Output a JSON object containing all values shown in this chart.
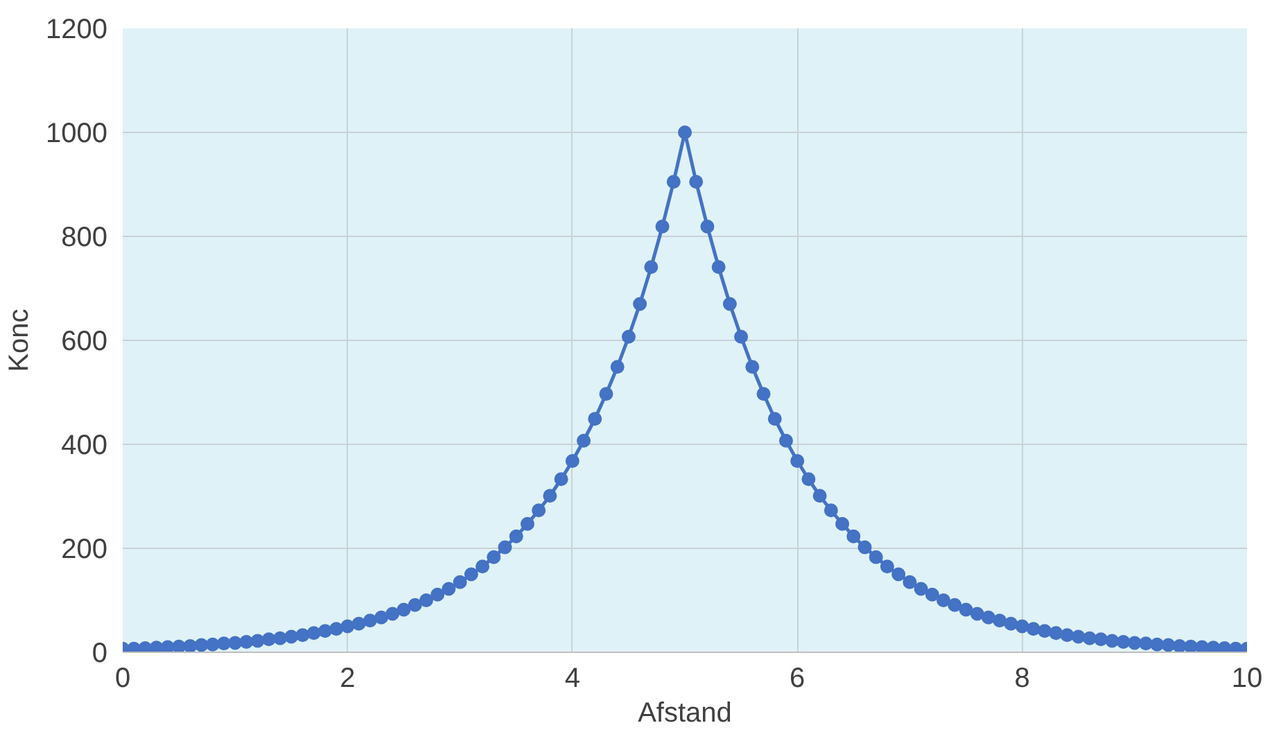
{
  "chart_data": {
    "type": "line",
    "xlabel": "Afstand",
    "ylabel": "Konc",
    "x": [
      0,
      0.1,
      0.2,
      0.3,
      0.4,
      0.5,
      0.6,
      0.7,
      0.8,
      0.9,
      1,
      1.1,
      1.2,
      1.3,
      1.4,
      1.5,
      1.6,
      1.7,
      1.8,
      1.9,
      2,
      2.1,
      2.2,
      2.3,
      2.4,
      2.5,
      2.6,
      2.7,
      2.8,
      2.9,
      3,
      3.1,
      3.2,
      3.3,
      3.4,
      3.5,
      3.6,
      3.7,
      3.8,
      3.9,
      4,
      4.1,
      4.2,
      4.3,
      4.4,
      4.5,
      4.6,
      4.7,
      4.8,
      4.9,
      5,
      5.1,
      5.2,
      5.3,
      5.4,
      5.5,
      5.6,
      5.7,
      5.8,
      5.9,
      6,
      6.1,
      6.2,
      6.3,
      6.4,
      6.5,
      6.6,
      6.7,
      6.8,
      6.9,
      7,
      7.1,
      7.2,
      7.3,
      7.4,
      7.5,
      7.6,
      7.7,
      7.8,
      7.9,
      8,
      8.1,
      8.2,
      8.3,
      8.4,
      8.5,
      8.6,
      8.7,
      8.8,
      8.9,
      9,
      9.1,
      9.2,
      9.3,
      9.4,
      9.5,
      9.6,
      9.7,
      9.8,
      9.9,
      10
    ],
    "series": [
      {
        "color": "#4472c4",
        "values": [
          7,
          7,
          8,
          9,
          10,
          11,
          12,
          14,
          15,
          17,
          18,
          20,
          22,
          25,
          27,
          30,
          33,
          37,
          41,
          45,
          50,
          55,
          61,
          67,
          74,
          82,
          91,
          100,
          111,
          122,
          135,
          150,
          165,
          183,
          202,
          223,
          247,
          273,
          301,
          333,
          368,
          407,
          449,
          497,
          549,
          607,
          670,
          741,
          819,
          905,
          1000,
          905,
          819,
          741,
          670,
          607,
          549,
          497,
          449,
          407,
          368,
          333,
          301,
          273,
          247,
          223,
          202,
          183,
          165,
          150,
          135,
          122,
          111,
          100,
          91,
          82,
          74,
          67,
          61,
          55,
          50,
          45,
          41,
          37,
          33,
          30,
          27,
          25,
          22,
          20,
          18,
          17,
          15,
          14,
          12,
          11,
          10,
          9,
          8,
          7,
          7
        ]
      }
    ],
    "xlim": [
      0,
      10
    ],
    "ylim": [
      0,
      1200
    ],
    "xticks": [
      0,
      2,
      4,
      6,
      8,
      10
    ],
    "yticks": [
      0,
      200,
      400,
      600,
      800,
      1000,
      1200
    ],
    "grid": true,
    "marker": "circle",
    "line_style": "solid"
  }
}
